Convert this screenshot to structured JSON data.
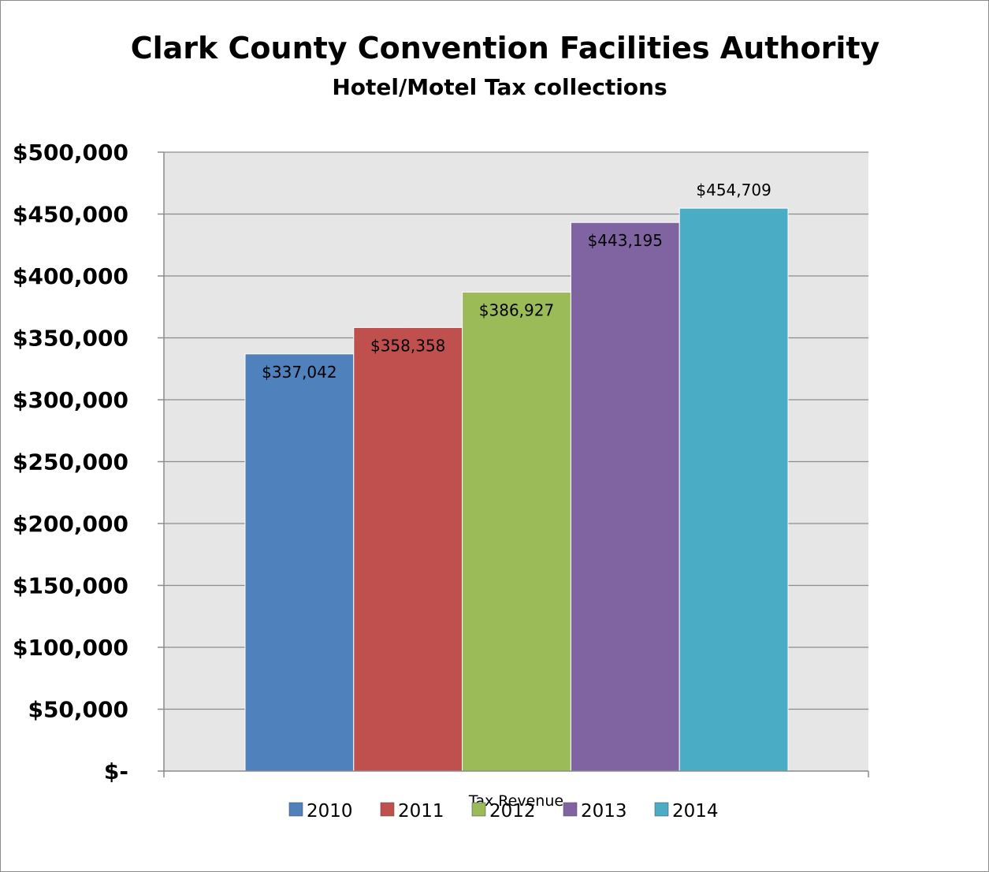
{
  "chart_data": {
    "type": "bar",
    "title": "Clark County Convention Facilities Authority",
    "subtitle": "Hotel/Motel Tax collections",
    "xlabel": "Tax Revenue",
    "ylabel": "",
    "categories": [
      "Tax Revenue"
    ],
    "ylim": [
      0,
      500000
    ],
    "yticks": [
      0,
      50000,
      100000,
      150000,
      200000,
      250000,
      300000,
      350000,
      400000,
      450000,
      500000
    ],
    "ytick_labels": [
      "$-",
      "$50,000",
      "$100,000",
      "$150,000",
      "$200,000",
      "$250,000",
      "$300,000",
      "$350,000",
      "$400,000",
      "$450,000",
      "$500,000"
    ],
    "grid": true,
    "legend_position": "bottom",
    "series": [
      {
        "name": "2010",
        "values": [
          337042
        ],
        "label": "$337,042",
        "color": "#4F81BD"
      },
      {
        "name": "2011",
        "values": [
          358358
        ],
        "label": "$358,358",
        "color": "#C0504D"
      },
      {
        "name": "2012",
        "values": [
          386927
        ],
        "label": "$386,927",
        "color": "#9BBB59"
      },
      {
        "name": "2013",
        "values": [
          443195
        ],
        "label": "$443,195",
        "color": "#8064A2"
      },
      {
        "name": "2014",
        "values": [
          454709
        ],
        "label": "$454,709",
        "color": "#4BACC6"
      }
    ]
  }
}
